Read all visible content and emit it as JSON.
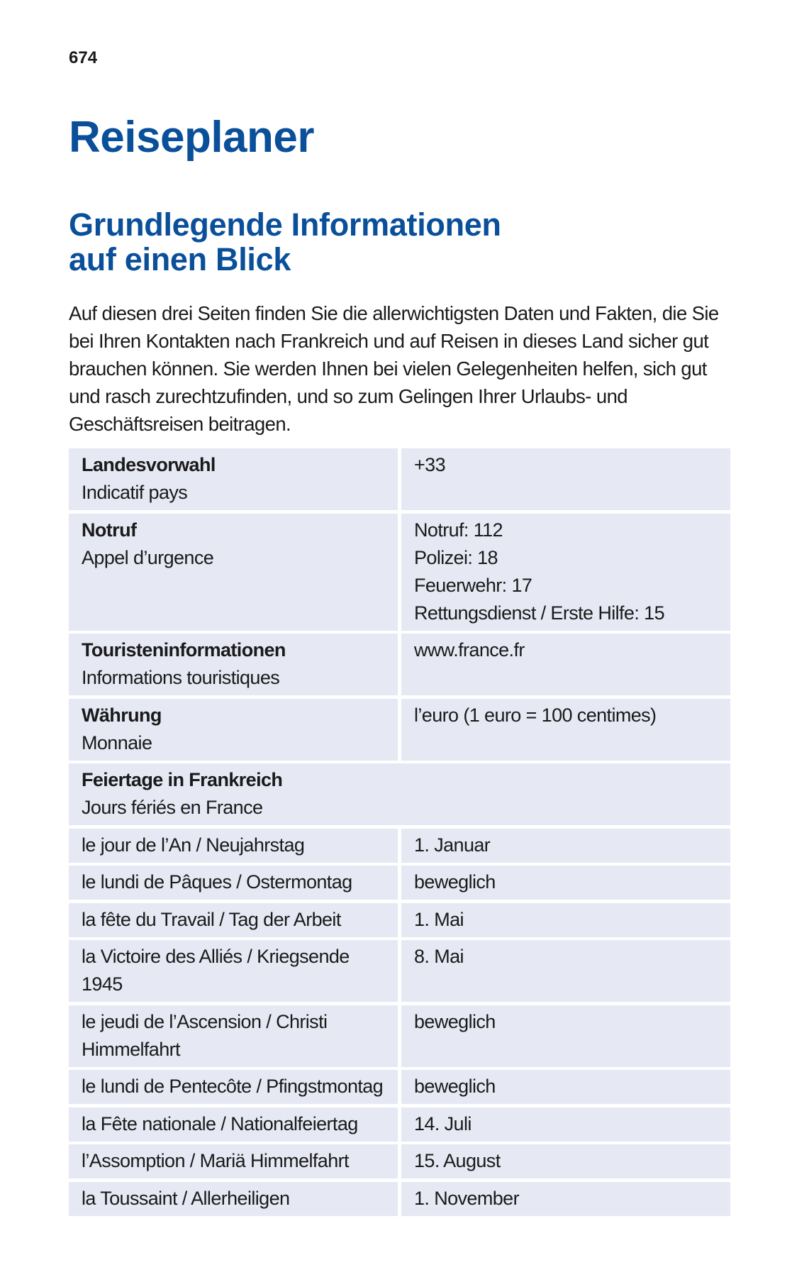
{
  "page_number": "674",
  "title": "Reiseplaner",
  "subtitle_line1": "Grundlegende Informationen",
  "subtitle_line2": "auf einen Blick",
  "intro": "Auf diesen drei Seiten finden Sie die allerwichtigsten Daten und Fakten, die Sie bei Ihren Kontakten nach Frankreich und auf Reisen in dieses Land sicher gut brauchen können. Sie werden Ihnen bei vielen Gelegenheiten helfen, sich gut und rasch zurechtzufinden, und so zum Gelingen Ihrer Urlaubs- und Geschäftsreisen beitragen.",
  "colors": {
    "heading": "#0a4f9a",
    "cell_bg": "#e6e8f4"
  },
  "info_rows": [
    {
      "label_de": "Landesvorwahl",
      "label_fr": "Indicatif pays",
      "values": [
        "+33"
      ]
    },
    {
      "label_de": "Notruf",
      "label_fr": "Appel d’urgence",
      "values": [
        "Notruf: 112",
        "Polizei: 18",
        "Feuerwehr: 17",
        "Rettungsdienst / Erste Hilfe: 15"
      ]
    },
    {
      "label_de": "Touristeninformationen",
      "label_fr": "Informations touristiques",
      "values": [
        "www.france.fr"
      ]
    },
    {
      "label_de": "Währung",
      "label_fr": "Monnaie",
      "values": [
        "l’euro (1 euro = 100 centimes)"
      ]
    }
  ],
  "holidays_header": {
    "label_de": "Feiertage in Frankreich",
    "label_fr": "Jours fériés en France"
  },
  "holidays": [
    {
      "name": "le jour de l’An / Neujahrstag",
      "date": "1. Januar"
    },
    {
      "name": "le lundi de Pâques / Ostermontag",
      "date": "beweglich"
    },
    {
      "name": "la fête du Travail / Tag der Arbeit",
      "date": "1. Mai"
    },
    {
      "name": "la Victoire des Alliés / Kriegsende 1945",
      "date": "8. Mai"
    },
    {
      "name": "le jeudi de l’Ascension / Christi Himmelfahrt",
      "date": "beweglich"
    },
    {
      "name": "le lundi de Pentecôte / Pfingstmontag",
      "date": "beweglich"
    },
    {
      "name": "la Fête nationale / Nationalfeiertag",
      "date": "14. Juli"
    },
    {
      "name": "l’Assomption / Mariä Himmelfahrt",
      "date": "15. August"
    },
    {
      "name": "la Toussaint / Allerheiligen",
      "date": "1. November"
    }
  ]
}
